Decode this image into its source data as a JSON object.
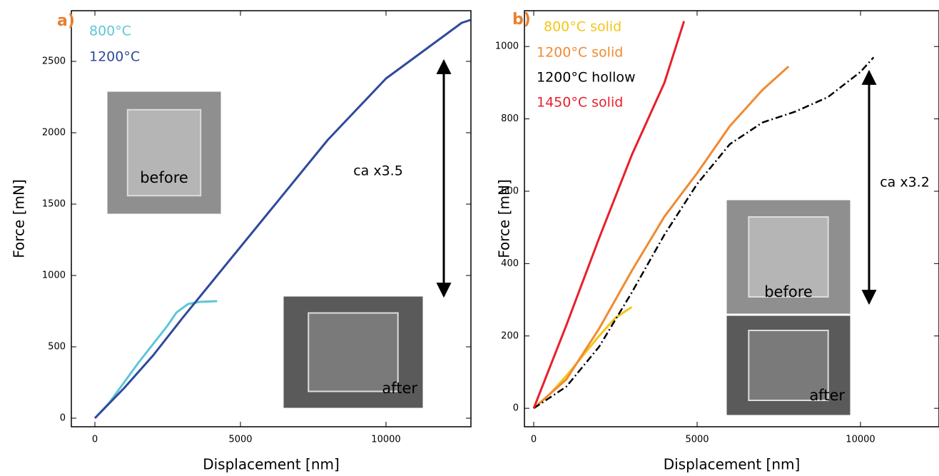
{
  "chart_data": [
    {
      "type": "line",
      "panel_label": "a)",
      "x_label": "Displacement [nm]",
      "y_label": "Force [mN]",
      "xlim": [
        -809,
        12917
      ],
      "ylim": [
        -60,
        2855
      ],
      "xticks": [
        0,
        5000,
        10000
      ],
      "yticks": [
        0,
        500,
        1000,
        1500,
        2000,
        2500
      ],
      "annotations": [
        "ca x3.5"
      ],
      "insets": [
        "before",
        "after"
      ],
      "series": [
        {
          "name": "800°C",
          "color": "#5ec6d8",
          "x": [
            0,
            500,
            1000,
            1500,
            2000,
            2500,
            2800,
            3200,
            3600,
            4200
          ],
          "values": [
            0,
            110,
            250,
            390,
            520,
            650,
            740,
            800,
            815,
            820
          ]
        },
        {
          "name": "1200°C",
          "color": "#2f4a9c",
          "x": [
            0,
            1000,
            2000,
            3000,
            4000,
            6000,
            8000,
            10000,
            11000,
            12000,
            12600,
            12900
          ],
          "values": [
            0,
            210,
            440,
            700,
            950,
            1450,
            1950,
            2380,
            2530,
            2680,
            2770,
            2790
          ]
        }
      ]
    },
    {
      "type": "line",
      "panel_label": "b)",
      "x_label": "Displacement [nm]",
      "y_label": "Force [mN]",
      "xlim": [
        -284,
        12402
      ],
      "ylim": [
        -51,
        1099
      ],
      "xticks": [
        0,
        5000,
        10000
      ],
      "yticks": [
        0,
        200,
        400,
        600,
        800,
        1000
      ],
      "annotations": [
        "ca x3.2"
      ],
      "insets": [
        "before",
        "after"
      ],
      "series": [
        {
          "name": "800°C solid",
          "color": "#f5c518",
          "x": [
            0,
            500,
            1000,
            1500,
            2000,
            2500,
            3000
          ],
          "values": [
            0,
            40,
            90,
            145,
            200,
            250,
            280
          ]
        },
        {
          "name": "1200°C solid",
          "color": "#f08a30",
          "x": [
            0,
            1000,
            2000,
            3000,
            4000,
            5000,
            6000,
            7000,
            7800
          ],
          "values": [
            0,
            80,
            220,
            380,
            530,
            650,
            780,
            880,
            945
          ]
        },
        {
          "name": "1200°C hollow",
          "color": "#000000",
          "dash": true,
          "x": [
            0,
            1000,
            2000,
            3000,
            4000,
            5000,
            6000,
            7000,
            8000,
            9000,
            10000,
            10400
          ],
          "values": [
            0,
            60,
            170,
            320,
            480,
            620,
            730,
            790,
            820,
            860,
            930,
            970
          ]
        },
        {
          "name": "1450°C solid",
          "color": "#e8202a",
          "x": [
            0,
            1000,
            2000,
            3000,
            4000,
            4600
          ],
          "values": [
            0,
            230,
            470,
            700,
            900,
            1070
          ]
        }
      ]
    }
  ]
}
